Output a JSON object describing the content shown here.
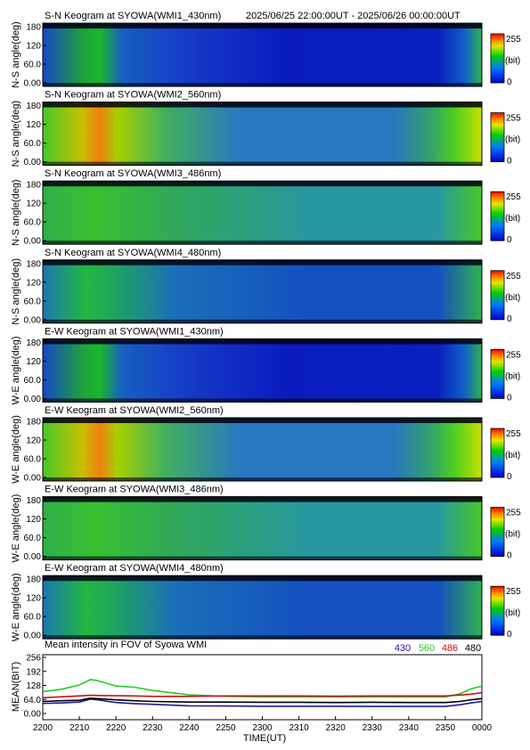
{
  "header": {
    "range": "2025/06/25 22:00:00UT - 2025/06/26 00:00:00UT"
  },
  "panels": [
    {
      "title": "S-N Keogram at SYOWA(WMI1_430nm)",
      "ylabel": "N-S angle(deg)",
      "cb_max": "255",
      "cb_unit": "(bit)",
      "cb_min": "0",
      "ticks": [
        "180",
        "120",
        "60.0",
        "0.00"
      ]
    },
    {
      "title": "S-N Keogram at SYOWA(WMI2_560nm)",
      "ylabel": "N-S angle(deg)",
      "cb_max": "255",
      "cb_unit": "(bit)",
      "cb_min": "0",
      "ticks": [
        "180",
        "120",
        "60.0",
        "0.00"
      ]
    },
    {
      "title": "S-N Keogram at SYOWA(WMI3_486nm)",
      "ylabel": "N-S angle(deg)",
      "cb_max": "255",
      "cb_unit": "(bit)",
      "cb_min": "0",
      "ticks": [
        "180",
        "120",
        "60.0",
        "0.00"
      ]
    },
    {
      "title": "S-N Keogram at SYOWA(WMI4_480nm)",
      "ylabel": "N-S angle(deg)",
      "cb_max": "255",
      "cb_unit": "(bit)",
      "cb_min": "0",
      "ticks": [
        "180",
        "120",
        "60.0",
        "0.00"
      ]
    },
    {
      "title": "E-W Keogram at SYOWA(WMI1_430nm)",
      "ylabel": "W-E angle(deg)",
      "cb_max": "255",
      "cb_unit": "(bit)",
      "cb_min": "0",
      "ticks": [
        "180",
        "120",
        "60.0",
        "0.00"
      ]
    },
    {
      "title": "E-W Keogram at SYOWA(WMI2_560nm)",
      "ylabel": "W-E angle(deg)",
      "cb_max": "255",
      "cb_unit": "(bit)",
      "cb_min": "0",
      "ticks": [
        "180",
        "120",
        "60.0",
        "0.00"
      ]
    },
    {
      "title": "E-W Keogram at SYOWA(WMI3_486nm)",
      "ylabel": "W-E angle(deg)",
      "cb_max": "255",
      "cb_unit": "(bit)",
      "cb_min": "0",
      "ticks": [
        "180",
        "120",
        "60.0",
        "0.00"
      ]
    },
    {
      "title": "E-W Keogram at SYOWA(WMI4_480nm)",
      "ylabel": "W-E angle(deg)",
      "cb_max": "255",
      "cb_unit": "(bit)",
      "cb_min": "0",
      "ticks": [
        "180",
        "120",
        "60.0",
        "0.00"
      ]
    }
  ],
  "colors": {
    "low": "#0000c8",
    "mid": "#00c800",
    "high": "#ff0000",
    "series_430": "#1a1aa0",
    "series_560": "#22cc22",
    "series_486": "#cc1111",
    "series_480": "#000000"
  },
  "chart_data": {
    "type": "line",
    "title": "Mean intensity in FOV of Syowa WMI",
    "xlabel": "TIME(UT)",
    "ylabel": "MEAN(BIT)",
    "ylim": [
      0,
      256
    ],
    "yticks": [
      "256",
      "192",
      "128",
      "64.0",
      "0.00"
    ],
    "xtick_labels": [
      "2200",
      "2210",
      "2220",
      "2230",
      "2240",
      "2250",
      "2300",
      "2310",
      "2320",
      "2330",
      "2340",
      "2350",
      "0000"
    ],
    "x": [
      0,
      5,
      10,
      13,
      15,
      20,
      25,
      30,
      40,
      50,
      60,
      70,
      80,
      90,
      100,
      110,
      114,
      117,
      120
    ],
    "series": [
      {
        "name": "430",
        "values": [
          46,
          48,
          52,
          65,
          62,
          50,
          45,
          42,
          35,
          34,
          33,
          33,
          33,
          32,
          32,
          32,
          40,
          48,
          55
        ]
      },
      {
        "name": "560",
        "values": [
          100,
          110,
          130,
          155,
          150,
          125,
          120,
          105,
          85,
          78,
          76,
          76,
          75,
          76,
          75,
          75,
          90,
          112,
          125
        ]
      },
      {
        "name": "486",
        "values": [
          72,
          76,
          80,
          83,
          82,
          81,
          80,
          78,
          78,
          80,
          80,
          80,
          79,
          80,
          80,
          80,
          84,
          88,
          95
        ]
      },
      {
        "name": "480",
        "values": [
          55,
          58,
          60,
          70,
          68,
          62,
          58,
          55,
          52,
          52,
          51,
          51,
          50,
          51,
          50,
          50,
          55,
          62,
          68
        ]
      }
    ]
  }
}
